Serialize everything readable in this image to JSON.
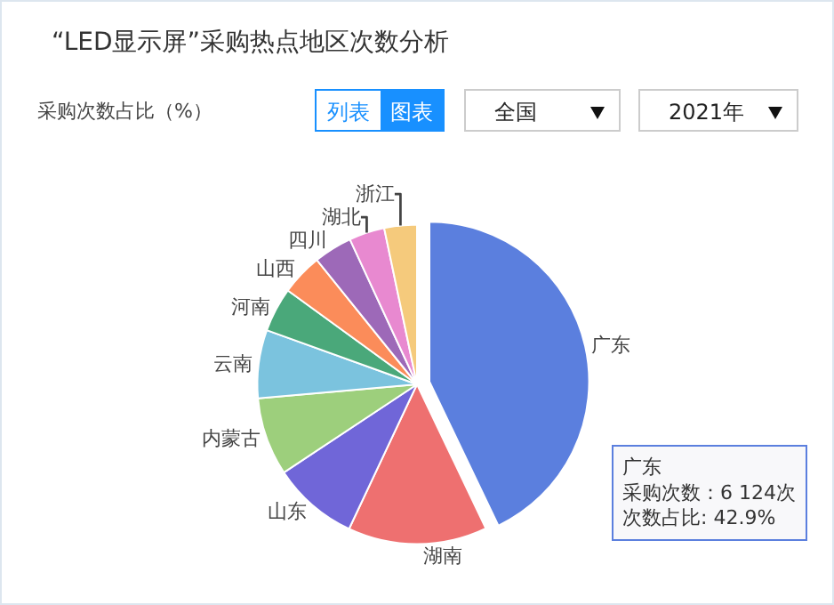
{
  "chart_data": {
    "type": "pie",
    "title": "“LED显示屏”采购热点地区次数分析",
    "subtitle": "采购次数占比（%）",
    "categories": [
      "广东",
      "湖南",
      "山东",
      "内蒙古",
      "云南",
      "河南",
      "山西",
      "四川",
      "湖北",
      "浙江"
    ],
    "values": [
      42.9,
      14.1,
      8.7,
      7.9,
      6.9,
      4.5,
      4.2,
      3.9,
      3.6,
      3.3
    ],
    "colors": [
      "#5b7fde",
      "#ee7070",
      "#7066d8",
      "#9dcf7c",
      "#7bc3de",
      "#4aa87a",
      "#fb8c5a",
      "#9d69b8",
      "#e889d0",
      "#f5ca7c"
    ],
    "annotations": [
      "列表",
      "图表",
      "全国",
      "2021年",
      "广东",
      "采购次数：6 124次",
      "次数占比: 42.9%"
    ],
    "legend": false
  }
}
